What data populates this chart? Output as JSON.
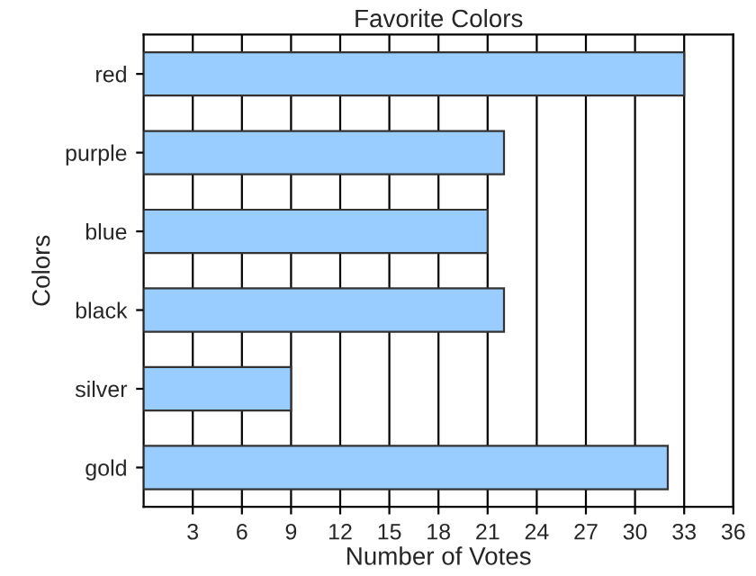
{
  "chart_data": {
    "type": "bar",
    "orientation": "horizontal",
    "title": "Favorite Colors",
    "xlabel": "Number of Votes",
    "ylabel": "Colors",
    "categories": [
      "red",
      "purple",
      "blue",
      "black",
      "silver",
      "gold"
    ],
    "values": [
      33,
      22,
      21,
      22,
      9,
      32
    ],
    "color": "#99ccff",
    "xlim": [
      0,
      36
    ],
    "xticks": [
      3,
      6,
      9,
      12,
      15,
      18,
      21,
      24,
      27,
      30,
      33,
      36
    ],
    "grid": "x",
    "legend": false
  }
}
